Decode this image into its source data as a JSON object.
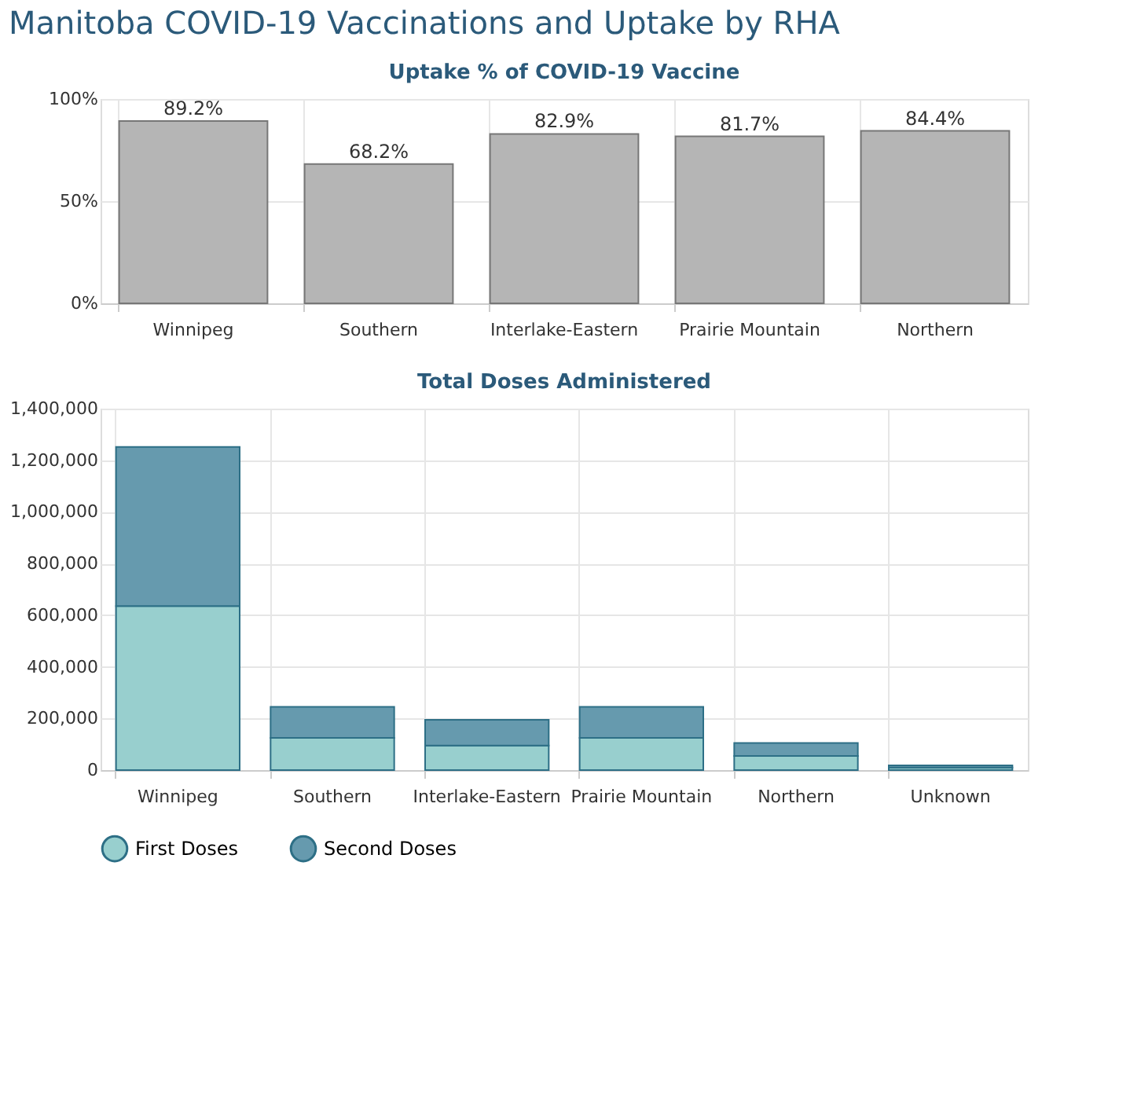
{
  "chart_data": [
    {
      "type": "bar",
      "title": "Manitoba COVID-19 Vaccinations and Uptake by RHA",
      "subtitle": "Uptake % of COVID-19 Vaccine",
      "categories": [
        "Winnipeg",
        "Southern",
        "Interlake-Eastern",
        "Prairie Mountain",
        "Northern"
      ],
      "values": [
        89.2,
        68.2,
        82.9,
        81.7,
        84.4
      ],
      "color": "#b5b5b5",
      "value_labels": [
        "89.2%",
        "68.2%",
        "82.9%",
        "81.7%",
        "84.4%"
      ],
      "ylim": [
        0,
        100
      ],
      "yticks": [
        {
          "value": 0,
          "label": "0%"
        },
        {
          "value": 50,
          "label": "50%"
        },
        {
          "value": 100,
          "label": "100%"
        }
      ],
      "grid": true
    },
    {
      "type": "bar",
      "subtitle": "Total Doses Administered",
      "stacked": true,
      "categories": [
        "Winnipeg",
        "Southern",
        "Interlake-Eastern",
        "Prairie Mountain",
        "Northern",
        "Unknown"
      ],
      "series": [
        {
          "name": "First Doses",
          "color": "#98cfce",
          "values": [
            635000,
            125000,
            95000,
            125000,
            55000,
            10000
          ]
        },
        {
          "name": "Second Doses",
          "color": "#669aae",
          "values": [
            617000,
            120000,
            100000,
            120000,
            50000,
            8000
          ]
        }
      ],
      "ylim": [
        0,
        1400000
      ],
      "yticks": [
        {
          "value": 0,
          "label": "0"
        },
        {
          "value": 200000,
          "label": "200,000"
        },
        {
          "value": 400000,
          "label": "400,000"
        },
        {
          "value": 600000,
          "label": "600,000"
        },
        {
          "value": 800000,
          "label": "800,000"
        },
        {
          "value": 1000000,
          "label": "1,000,000"
        },
        {
          "value": 1200000,
          "label": "1,200,000"
        },
        {
          "value": 1400000,
          "label": "1,400,000"
        }
      ],
      "grid": true,
      "legend": "bottom"
    }
  ]
}
